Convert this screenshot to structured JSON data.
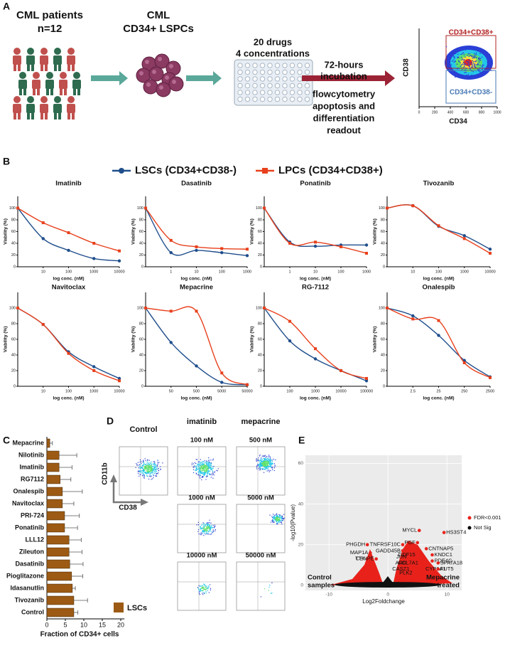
{
  "panel_a": {
    "label": "A",
    "patients": [
      "CML patients",
      "n=12"
    ],
    "cells": [
      "CML",
      "CD34+ LSPCs"
    ],
    "drugs": [
      "20 drugs",
      "4 concentrations"
    ],
    "incubation": [
      "72-hours",
      "incubation"
    ],
    "readout": [
      "flowcytometry",
      "apoptosis and",
      "differentiation",
      "readout"
    ],
    "gate_high": "CD34+CD38+",
    "gate_low": "CD34+CD38-",
    "ylabel": "CD38",
    "xlabel": "CD34",
    "xlim": [
      0,
      1000
    ],
    "xticks": [
      0,
      200,
      400,
      600,
      800,
      1000
    ]
  },
  "panel_b": {
    "label": "B",
    "legend": [
      {
        "name": "LSCs (CD34+CD38-)",
        "color": "#1f4e8c"
      },
      {
        "name": "LPCs (CD34+CD38+)",
        "color": "#e8401c"
      }
    ]
  },
  "panel_d": {
    "label": "D",
    "control": "Control",
    "drugs": [
      {
        "name": "imatinib",
        "doses": [
          "100 nM",
          "1000 nM",
          "10000 nM"
        ]
      },
      {
        "name": "mepacrine",
        "doses": [
          "500 nM",
          "5000 nM",
          "50000 nM"
        ]
      }
    ],
    "yaxis": "CD11b",
    "xaxis": "CD38"
  },
  "chart_data": [
    {
      "type": "line",
      "title": "Imatinib",
      "xlabel": "log conc. (nM)",
      "ylabel": "Viability (%)",
      "log_x": true,
      "x": [
        1,
        10,
        100,
        1000,
        10000
      ],
      "xlim": [
        1,
        10000
      ],
      "xticks": [
        10,
        100,
        1000,
        10000
      ],
      "ylim": [
        0,
        120
      ],
      "yticks": [
        0,
        20,
        40,
        60,
        80,
        100
      ],
      "series": [
        {
          "color": "#1f4e8c",
          "values": [
            100,
            48,
            28,
            14,
            10
          ]
        },
        {
          "color": "#e8401c",
          "values": [
            100,
            75,
            58,
            40,
            27
          ]
        }
      ]
    },
    {
      "type": "line",
      "title": "Dasatinib",
      "xlabel": "log conc. (nM)",
      "ylabel": "Viability (%)",
      "log_x": true,
      "x": [
        0.1,
        1,
        10,
        100,
        1000
      ],
      "xlim": [
        0.1,
        1000
      ],
      "xticks": [
        1,
        10,
        100,
        1000
      ],
      "ylim": [
        0,
        120
      ],
      "yticks": [
        0,
        20,
        40,
        60,
        80,
        100
      ],
      "series": [
        {
          "color": "#1f4e8c",
          "values": [
            100,
            24,
            28,
            24,
            19
          ]
        },
        {
          "color": "#e8401c",
          "values": [
            100,
            45,
            34,
            31,
            30
          ]
        }
      ]
    },
    {
      "type": "line",
      "title": "Ponatinib",
      "xlabel": "log conc. (nM)",
      "ylabel": "Viability (%)",
      "log_x": true,
      "x": [
        0.1,
        1,
        10,
        100,
        1000
      ],
      "xlim": [
        0.1,
        1000
      ],
      "xticks": [
        1,
        10,
        100,
        1000
      ],
      "ylim": [
        0,
        120
      ],
      "yticks": [
        0,
        20,
        40,
        60,
        80,
        100
      ],
      "series": [
        {
          "color": "#1f4e8c",
          "values": [
            100,
            42,
            35,
            37,
            37
          ]
        },
        {
          "color": "#e8401c",
          "values": [
            100,
            40,
            42,
            34,
            23
          ]
        }
      ]
    },
    {
      "type": "line",
      "title": "Tivozanib",
      "xlabel": "log conc. (nM)",
      "ylabel": "Viability (%)",
      "log_x": true,
      "x": [
        1,
        10,
        100,
        1000,
        10000
      ],
      "xlim": [
        1,
        10000
      ],
      "xticks": [
        10,
        100,
        1000,
        10000
      ],
      "ylim": [
        0,
        120
      ],
      "yticks": [
        0,
        20,
        40,
        60,
        80,
        100
      ],
      "series": [
        {
          "color": "#1f4e8c",
          "values": [
            100,
            104,
            69,
            53,
            30
          ]
        },
        {
          "color": "#e8401c",
          "values": [
            100,
            104,
            70,
            48,
            23
          ]
        }
      ]
    },
    {
      "type": "line",
      "title": "Navitoclax",
      "xlabel": "log conc. (nM)",
      "ylabel": "Viability (%)",
      "log_x": true,
      "x": [
        1,
        10,
        100,
        1000,
        10000
      ],
      "xlim": [
        1,
        10000
      ],
      "xticks": [
        10,
        100,
        1000,
        10000
      ],
      "ylim": [
        0,
        120
      ],
      "yticks": [
        0,
        20,
        40,
        60,
        80,
        100
      ],
      "series": [
        {
          "color": "#1f4e8c",
          "values": [
            100,
            79,
            44,
            25,
            10
          ]
        },
        {
          "color": "#e8401c",
          "values": [
            100,
            79,
            42,
            20,
            7
          ]
        }
      ]
    },
    {
      "type": "line",
      "title": "Mepacrine",
      "xlabel": "log conc. (nM)",
      "ylabel": "Viability (%)",
      "log_x": true,
      "x": [
        5,
        50,
        500,
        5000,
        50000
      ],
      "xlim": [
        5,
        50000
      ],
      "xticks": [
        50,
        500,
        5000,
        50000
      ],
      "ylim": [
        0,
        120
      ],
      "yticks": [
        0,
        20,
        40,
        60,
        80,
        100
      ],
      "series": [
        {
          "color": "#1f4e8c",
          "values": [
            100,
            56,
            26,
            5,
            2
          ]
        },
        {
          "color": "#e8401c",
          "values": [
            100,
            96,
            96,
            17,
            2
          ]
        }
      ]
    },
    {
      "type": "line",
      "title": "RG-7112",
      "xlabel": "log conc. (nM)",
      "ylabel": "Viability (%)",
      "log_x": true,
      "x": [
        10,
        100,
        1000,
        10000,
        100000
      ],
      "xlim": [
        10,
        100000
      ],
      "xticks": [
        100,
        1000,
        10000,
        100000
      ],
      "ylim": [
        0,
        120
      ],
      "yticks": [
        0,
        20,
        40,
        60,
        80,
        100
      ],
      "series": [
        {
          "color": "#1f4e8c",
          "values": [
            100,
            58,
            35,
            20,
            7
          ]
        },
        {
          "color": "#e8401c",
          "values": [
            100,
            83,
            48,
            20,
            10
          ]
        }
      ]
    },
    {
      "type": "line",
      "title": "Onalespib",
      "xlabel": "log conc. (nM)",
      "ylabel": "Viability (%)",
      "log_x": true,
      "x": [
        0.25,
        2.5,
        25,
        250,
        2500
      ],
      "xlim": [
        0.25,
        2500
      ],
      "xticks": [
        2.5,
        25,
        250,
        2500
      ],
      "ylim": [
        0,
        120
      ],
      "yticks": [
        0,
        20,
        40,
        60,
        80,
        100
      ],
      "series": [
        {
          "color": "#1f4e8c",
          "values": [
            100,
            90,
            65,
            33,
            12
          ]
        },
        {
          "color": "#e8401c",
          "values": [
            100,
            86,
            84,
            30,
            11
          ]
        }
      ]
    },
    {
      "type": "hbar",
      "label": "C",
      "legend": "LSCs",
      "color": "#9c5a14",
      "xlabel": "Fraction of CD34+ cells",
      "xlim": [
        0,
        21
      ],
      "xticks": [
        0,
        5,
        10,
        15,
        20
      ],
      "categories": [
        "Mepacrine",
        "Nilotinib",
        "Imatinib",
        "RG7112",
        "Onalespib",
        "Navitoclax",
        "PRI-724",
        "Ponatinib",
        "LLL12",
        "Zileuton",
        "Dasatinib",
        "Pioglitazone",
        "Idasanutlin",
        "Tivozanib",
        "Control"
      ],
      "values": [
        0.8,
        3.3,
        3.3,
        3.6,
        4.2,
        4.2,
        4.8,
        4.8,
        6,
        6,
        6.2,
        6.7,
        6.9,
        7.3,
        7.3
      ],
      "errors": [
        0.7,
        4.8,
        3.5,
        2.9,
        5.4,
        3.1,
        4,
        3.5,
        3.3,
        3.5,
        3.6,
        3,
        0.8,
        3.7,
        1.1
      ]
    },
    {
      "type": "volcano",
      "label": "E",
      "xlabel": "Log2Foldchange",
      "ylabel": "-log10(Pvalue)",
      "xlim": [
        -14,
        12.5
      ],
      "ylim": [
        -2.5,
        64
      ],
      "xticks": [
        -10,
        0,
        10
      ],
      "yticks": [
        0,
        20,
        40,
        60
      ],
      "series": [
        {
          "name": "FDR<0.001",
          "color": "#e8221b",
          "labels": [
            "MYCL",
            "HS3ST4",
            "PGF",
            "TNFRSF10C",
            "CNTNAP5",
            "GADD45B",
            "GDF15",
            "KNDC1",
            "PHGDH",
            "MAP1A",
            "JUN",
            "PDE4C",
            "ARC",
            "COL7A1",
            "TTK",
            "CENPE",
            "SPATA18",
            "CASZ1",
            "CYP1A1",
            "FUT5",
            "PLK2"
          ],
          "x": [
            5.3,
            9.5,
            5,
            2.5,
            6.5,
            2.5,
            5,
            7.5,
            -3.5,
            -3,
            3.5,
            7.5,
            3.5,
            5.5,
            -3.5,
            -2,
            8.5,
            4,
            6,
            8.5,
            4.5
          ],
          "values": [
            27,
            26,
            21,
            20,
            18,
            17,
            15,
            15,
            20,
            16,
            14,
            12,
            11,
            11,
            13,
            13,
            11,
            8,
            8,
            8,
            6
          ]
        },
        {
          "name": "Not Sig",
          "color": "#000000",
          "x": [],
          "values": []
        }
      ],
      "annotations": [
        [
          "Control",
          "samples"
        ],
        [
          "Mepacrine",
          "treated"
        ]
      ]
    }
  ]
}
